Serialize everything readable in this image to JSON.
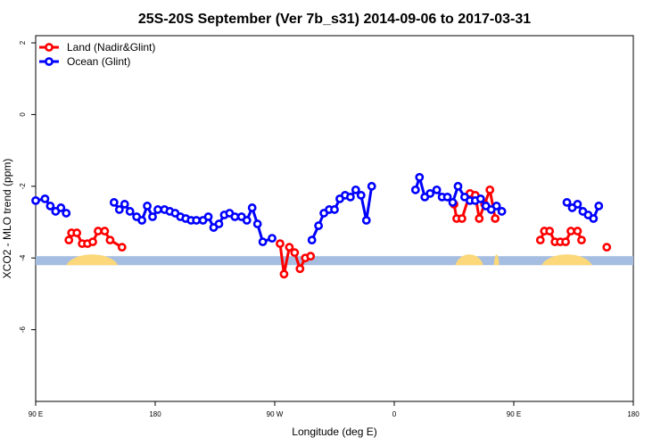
{
  "chart_data": {
    "type": "line",
    "title": "25S-20S September (Ver 7b_s31)   2014-09-06 to 2017-03-31",
    "xlabel": "Longitude (deg E)",
    "ylabel": "XCO2 - MLO trend (ppm)",
    "xlim": [
      90,
      540
    ],
    "ylim": [
      -8,
      2.2
    ],
    "x_ticks": [
      {
        "value": 90,
        "label": "90 E"
      },
      {
        "value": 180,
        "label": "180"
      },
      {
        "value": 270,
        "label": "90 W"
      },
      {
        "value": 360,
        "label": "0"
      },
      {
        "value": 450,
        "label": "90 E"
      },
      {
        "value": 540,
        "label": "180"
      }
    ],
    "y_ticks": [
      {
        "value": 2,
        "label": "2"
      },
      {
        "value": 0,
        "label": "0"
      },
      {
        "value": -2,
        "label": "-2"
      },
      {
        "value": -4,
        "label": "-4"
      },
      {
        "value": -6,
        "label": "-6"
      }
    ],
    "legend_position": "top-left",
    "surface_band": {
      "y_range": [
        -4.2,
        -3.95
      ],
      "ocean_color": "#a4bde0",
      "land_color": "#fcd87a",
      "land_segments_lon": [
        [
          113,
          152
        ],
        [
          406,
          427
        ],
        [
          435,
          439
        ],
        [
          471,
          509
        ]
      ]
    },
    "series": [
      {
        "name": "Land (Nadir&Glint)",
        "color": "#ff0000",
        "segments": [
          [
            [
              115,
              -3.5
            ],
            [
              117,
              -3.3
            ],
            [
              121,
              -3.3
            ],
            [
              125,
              -3.6
            ],
            [
              129,
              -3.6
            ],
            [
              133,
              -3.55
            ],
            [
              137,
              -3.25
            ],
            [
              142,
              -3.25
            ],
            [
              146,
              -3.5
            ],
            [
              155,
              -3.7
            ]
          ],
          [
            [
              274,
              -3.6
            ],
            [
              277,
              -4.45
            ],
            [
              281,
              -3.7
            ],
            [
              285,
              -3.85
            ],
            [
              289,
              -4.3
            ],
            [
              293,
              -4.0
            ],
            [
              297,
              -3.95
            ]
          ],
          [
            [
              405,
              -2.5
            ],
            [
              407,
              -2.9
            ],
            [
              411,
              -2.9
            ],
            [
              417,
              -2.2
            ],
            [
              421,
              -2.25
            ],
            [
              424,
              -2.9
            ],
            [
              428,
              -2.5
            ],
            [
              432,
              -2.1
            ],
            [
              436,
              -2.9
            ]
          ],
          [
            [
              520,
              -3.7
            ]
          ],
          [
            [
              470,
              -3.5
            ],
            [
              473,
              -3.25
            ],
            [
              477,
              -3.25
            ],
            [
              481,
              -3.55
            ],
            [
              485,
              -3.55
            ],
            [
              489,
              -3.55
            ],
            [
              493,
              -3.25
            ],
            [
              498,
              -3.25
            ],
            [
              501,
              -3.5
            ]
          ]
        ]
      },
      {
        "name": "Ocean (Glint)",
        "color": "#0000ff",
        "segments": [
          [
            [
              90,
              -2.4
            ],
            [
              97,
              -2.35
            ],
            [
              101,
              -2.55
            ],
            [
              105,
              -2.7
            ],
            [
              109,
              -2.6
            ],
            [
              113,
              -2.75
            ]
          ],
          [
            [
              149,
              -2.45
            ],
            [
              153,
              -2.65
            ],
            [
              157,
              -2.5
            ],
            [
              161,
              -2.7
            ],
            [
              166,
              -2.85
            ],
            [
              170,
              -2.95
            ],
            [
              174,
              -2.55
            ],
            [
              178,
              -2.85
            ],
            [
              182,
              -2.65
            ],
            [
              187,
              -2.65
            ],
            [
              191,
              -2.7
            ],
            [
              195,
              -2.75
            ],
            [
              199,
              -2.85
            ],
            [
              203,
              -2.9
            ],
            [
              207,
              -2.95
            ],
            [
              211,
              -2.95
            ],
            [
              216,
              -2.95
            ],
            [
              220,
              -2.85
            ],
            [
              224,
              -3.15
            ],
            [
              228,
              -3.05
            ],
            [
              232,
              -2.8
            ],
            [
              236,
              -2.75
            ],
            [
              240,
              -2.85
            ],
            [
              245,
              -2.85
            ],
            [
              249,
              -2.95
            ],
            [
              253,
              -2.6
            ],
            [
              257,
              -3.05
            ],
            [
              261,
              -3.55
            ],
            [
              268,
              -3.45
            ]
          ],
          [
            [
              298,
              -3.5
            ],
            [
              303,
              -3.1
            ],
            [
              307,
              -2.75
            ],
            [
              311,
              -2.65
            ],
            [
              315,
              -2.65
            ],
            [
              319,
              -2.35
            ],
            [
              323,
              -2.25
            ],
            [
              327,
              -2.3
            ],
            [
              331,
              -2.1
            ],
            [
              335,
              -2.25
            ],
            [
              339,
              -2.95
            ],
            [
              343,
              -2.0
            ]
          ],
          [
            [
              376,
              -2.1
            ],
            [
              379,
              -1.75
            ],
            [
              383,
              -2.3
            ],
            [
              387,
              -2.2
            ],
            [
              392,
              -2.1
            ],
            [
              396,
              -2.3
            ],
            [
              400,
              -2.3
            ],
            [
              404,
              -2.45
            ],
            [
              408,
              -2.0
            ],
            [
              413,
              -2.3
            ],
            [
              417,
              -2.4
            ],
            [
              421,
              -2.4
            ],
            [
              425,
              -2.35
            ],
            [
              429,
              -2.55
            ],
            [
              433,
              -2.65
            ],
            [
              437,
              -2.55
            ],
            [
              441,
              -2.7
            ]
          ],
          [
            [
              490,
              -2.45
            ],
            [
              494,
              -2.6
            ],
            [
              498,
              -2.5
            ],
            [
              502,
              -2.7
            ],
            [
              506,
              -2.8
            ],
            [
              510,
              -2.9
            ],
            [
              514,
              -2.55
            ]
          ]
        ]
      }
    ]
  }
}
